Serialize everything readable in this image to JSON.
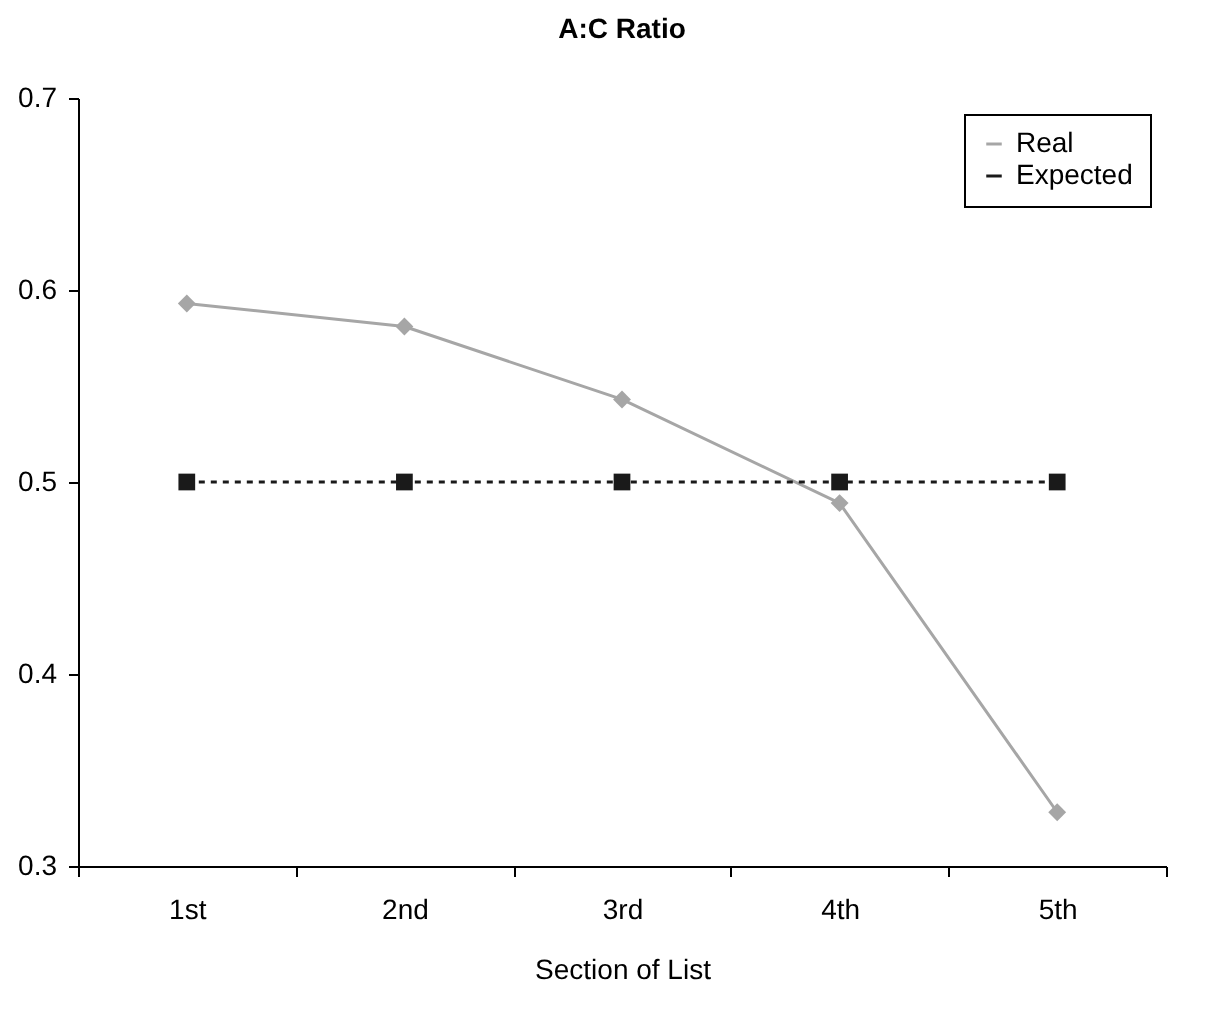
{
  "chart_data": {
    "type": "line",
    "title": "A:C Ratio",
    "xlabel": "Section of List",
    "categories": [
      "1st",
      "2nd",
      "3rd",
      "4th",
      "5th"
    ],
    "series": [
      {
        "name": "Real",
        "color": "#a6a6a6",
        "values": [
          0.593,
          0.581,
          0.543,
          0.489,
          0.328
        ],
        "marker": "diamond",
        "line_style": "solid"
      },
      {
        "name": "Expected",
        "color": "#1a1a1a",
        "values": [
          0.5,
          0.5,
          0.5,
          0.5,
          0.5
        ],
        "marker": "square",
        "line_style": "dotted"
      }
    ],
    "ylim": [
      0.3,
      0.7
    ],
    "yticks": [
      0.3,
      0.4,
      0.5,
      0.6,
      0.7
    ],
    "grid": false,
    "legend": "top right"
  }
}
